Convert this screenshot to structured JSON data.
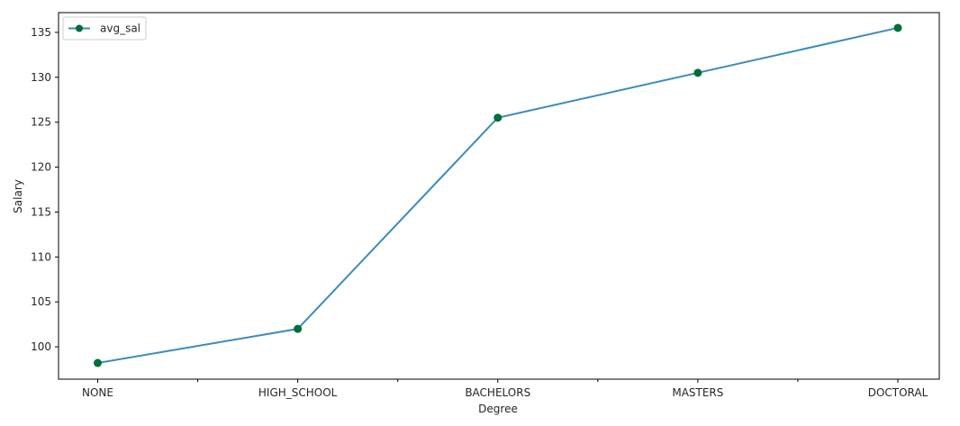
{
  "chart_data": {
    "type": "line",
    "title": "",
    "xlabel": "Degree",
    "ylabel": "Salary",
    "categories": [
      "NONE",
      "HIGH_SCHOOL",
      "BACHELORS",
      "MASTERS",
      "DOCTORAL"
    ],
    "series": [
      {
        "name": "avg_sal",
        "values": [
          98.2,
          102.0,
          125.5,
          130.5,
          135.5
        ],
        "line_color": "#3a8bbd",
        "marker_color": "#006d3c"
      }
    ],
    "ylim": [
      96.4,
      137.2
    ],
    "yticks": [
      100,
      105,
      110,
      115,
      120,
      125,
      130,
      135
    ],
    "grid": false,
    "legend": "top-left",
    "minor_xticks": true
  }
}
